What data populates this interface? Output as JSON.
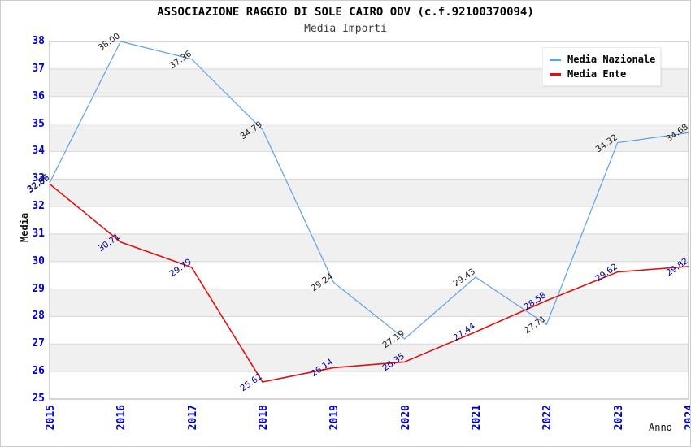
{
  "header": {
    "title": "ASSOCIAZIONE RAGGIO DI SOLE CAIRO ODV (c.f.92100370094)",
    "subtitle": "Media Importi"
  },
  "chart_data": {
    "type": "line",
    "title": "ASSOCIAZIONE RAGGIO DI SOLE CAIRO ODV (c.f.92100370094)",
    "subtitle": "Media Importi",
    "xlabel": "Anno",
    "ylabel": "Media",
    "x": [
      2015,
      2016,
      2017,
      2018,
      2019,
      2020,
      2021,
      2022,
      2023,
      2024
    ],
    "ylim": [
      25,
      38
    ],
    "ytick_step": 1,
    "grid": true,
    "legend_position": "top-right",
    "series": [
      {
        "name": "Media Nazionale",
        "color": "#5FA0E6",
        "label_color": "#222222",
        "values": [
          32.86,
          38.0,
          37.36,
          34.79,
          29.24,
          27.19,
          29.43,
          27.71,
          34.32,
          34.68
        ]
      },
      {
        "name": "Media Ente",
        "color": "#E01010",
        "label_color": "#000099",
        "values": [
          32.82,
          30.71,
          29.79,
          25.62,
          26.14,
          26.35,
          27.44,
          28.58,
          29.62,
          29.82
        ]
      }
    ],
    "colors": {
      "tick_label": "#0000CC",
      "gridline": "#D8D8D8",
      "band": "#F0F0F0",
      "frame": "#AAAAAA"
    }
  }
}
